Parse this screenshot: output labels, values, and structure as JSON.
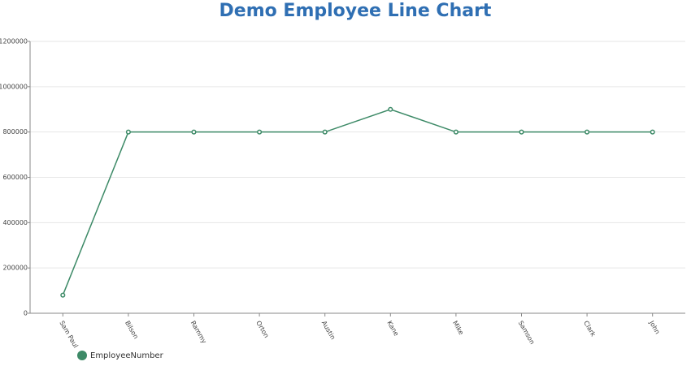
{
  "chart_data": {
    "type": "line",
    "title": "Demo Employee Line Chart",
    "categories": [
      "Sam Paul",
      "Bilson",
      "Rammy",
      "Orton",
      "Austin",
      "Kane",
      "Mike",
      "Samson",
      "Clark",
      "John"
    ],
    "series": [
      {
        "name": "EmployeeNumber",
        "color": "#3d8a67",
        "values": [
          80000,
          800000,
          800000,
          800000,
          800000,
          900000,
          800000,
          800000,
          800000,
          800000
        ]
      }
    ],
    "ylim": [
      0,
      1200000
    ],
    "yticks": [
      0,
      200000,
      400000,
      600000,
      800000,
      1000000,
      1200000
    ],
    "grid": true,
    "legend": "bottom-left"
  }
}
